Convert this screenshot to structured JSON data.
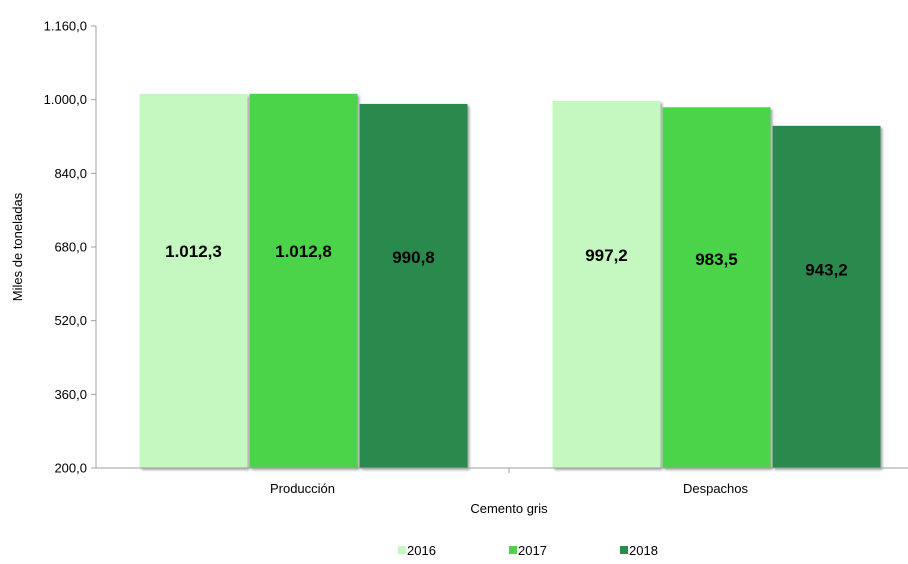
{
  "chart_data": {
    "type": "bar",
    "title": "",
    "xlabel": "Cemento gris",
    "ylabel": "Miles de toneladas",
    "categories": [
      "Producción",
      "Despachos"
    ],
    "ylim": [
      200,
      1160
    ],
    "yticks": [
      200,
      360,
      520,
      680,
      840,
      1000,
      1160
    ],
    "ytick_labels": [
      "200,0",
      "360,0",
      "520,0",
      "680,0",
      "840,0",
      "1.000,0",
      "1.160,0"
    ],
    "grid": false,
    "legend_position": "bottom",
    "series": [
      {
        "name": "2016",
        "color": "#c5f7c0",
        "values": [
          1012.3,
          997.2
        ],
        "labels": [
          "1.012,3",
          "997,2"
        ]
      },
      {
        "name": "2017",
        "color": "#4cd34a",
        "values": [
          1012.8,
          983.5
        ],
        "labels": [
          "1.012,8",
          "983,5"
        ]
      },
      {
        "name": "2018",
        "color": "#2a8a4e",
        "values": [
          990.8,
          943.2
        ],
        "labels": [
          "990,8",
          "943,2"
        ]
      }
    ]
  }
}
